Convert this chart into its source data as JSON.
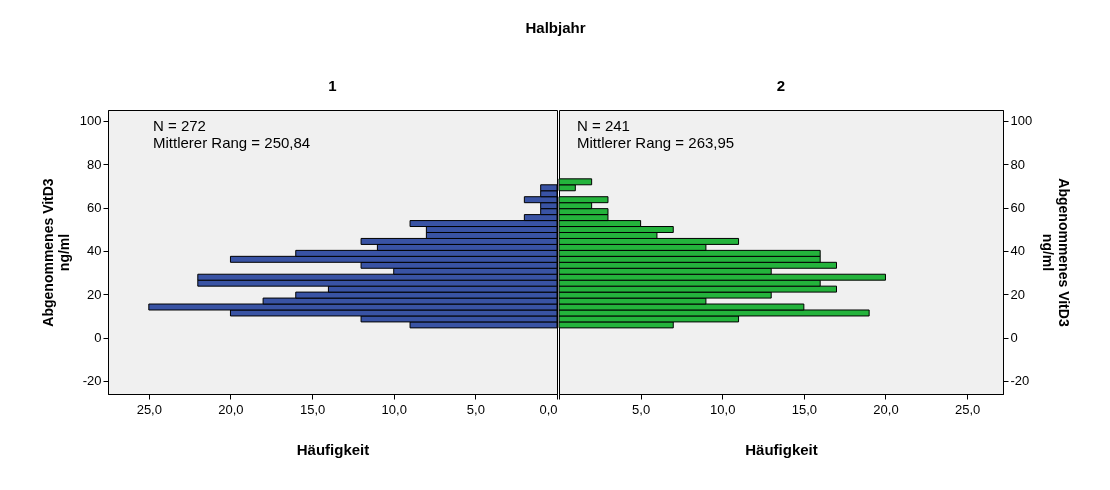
{
  "chart_data": [
    {
      "type": "histogram",
      "orientation": "horizontal",
      "title": "Halbjahr",
      "subtitle": "1",
      "xlabel": "Häufigkeit",
      "ylabel": "Abgenommenes VitD3 ng/ml",
      "annotations": [
        "N = 272",
        "Mittlerer Rang = 250,84"
      ],
      "color": "#3953a4",
      "bins": [
        4.5,
        7.25,
        10,
        12.75,
        15.5,
        18.25,
        21,
        23.75,
        26.5,
        29.25,
        32,
        34.75,
        37.5,
        40.25,
        43,
        45.75,
        48.5,
        51.25,
        54,
        56.75,
        59.5,
        62.25,
        65,
        67.75,
        70.5
      ],
      "values": [
        9,
        12,
        20,
        25,
        18,
        16,
        14,
        22,
        22,
        10,
        12,
        20,
        16,
        11,
        12,
        8,
        8,
        9,
        2,
        1,
        1,
        2,
        1,
        1
      ],
      "xlim": [
        27.5,
        0
      ],
      "xticks": [
        {
          "value": 0,
          "label": "0,0"
        },
        {
          "value": 5,
          "label": "5,0"
        },
        {
          "value": 10,
          "label": "10,0"
        },
        {
          "value": 15,
          "label": "15,0"
        },
        {
          "value": 20,
          "label": "20,0"
        },
        {
          "value": 25,
          "label": "25,0"
        }
      ],
      "ylim": [
        -26,
        105
      ],
      "yticks": [
        -20,
        0,
        20,
        40,
        60,
        80,
        100
      ]
    },
    {
      "type": "histogram",
      "orientation": "horizontal",
      "subtitle": "2",
      "xlabel": "Häufigkeit",
      "ylabel": "Abgenommenes VitD3 ng/ml",
      "annotations": [
        "N = 241",
        "Mittlerer Rang = 263,95"
      ],
      "color": "#24b33c",
      "bins": [
        4.5,
        7.25,
        10,
        12.75,
        15.5,
        18.25,
        21,
        23.75,
        26.5,
        29.25,
        32,
        34.75,
        37.5,
        40.25,
        43,
        45.75,
        48.5,
        51.25,
        54,
        56.75,
        59.5,
        62.25,
        65,
        67.75,
        70.5,
        73.25
      ],
      "values": [
        7,
        11,
        19,
        15,
        9,
        13,
        17,
        16,
        20,
        13,
        17,
        16,
        16,
        9,
        11,
        6,
        7,
        5,
        3,
        3,
        2,
        3,
        0,
        1,
        2
      ],
      "xlim": [
        0,
        27.2
      ],
      "xticks": [
        {
          "value": 0,
          "label": null
        },
        {
          "value": 5,
          "label": "5,0"
        },
        {
          "value": 10,
          "label": "10,0"
        },
        {
          "value": 15,
          "label": "15,0"
        },
        {
          "value": 20,
          "label": "20,0"
        },
        {
          "value": 25,
          "label": "25,0"
        }
      ],
      "ylim": [
        -26,
        105
      ],
      "yticks": [
        -20,
        0,
        20,
        40,
        60,
        80,
        100
      ]
    }
  ]
}
